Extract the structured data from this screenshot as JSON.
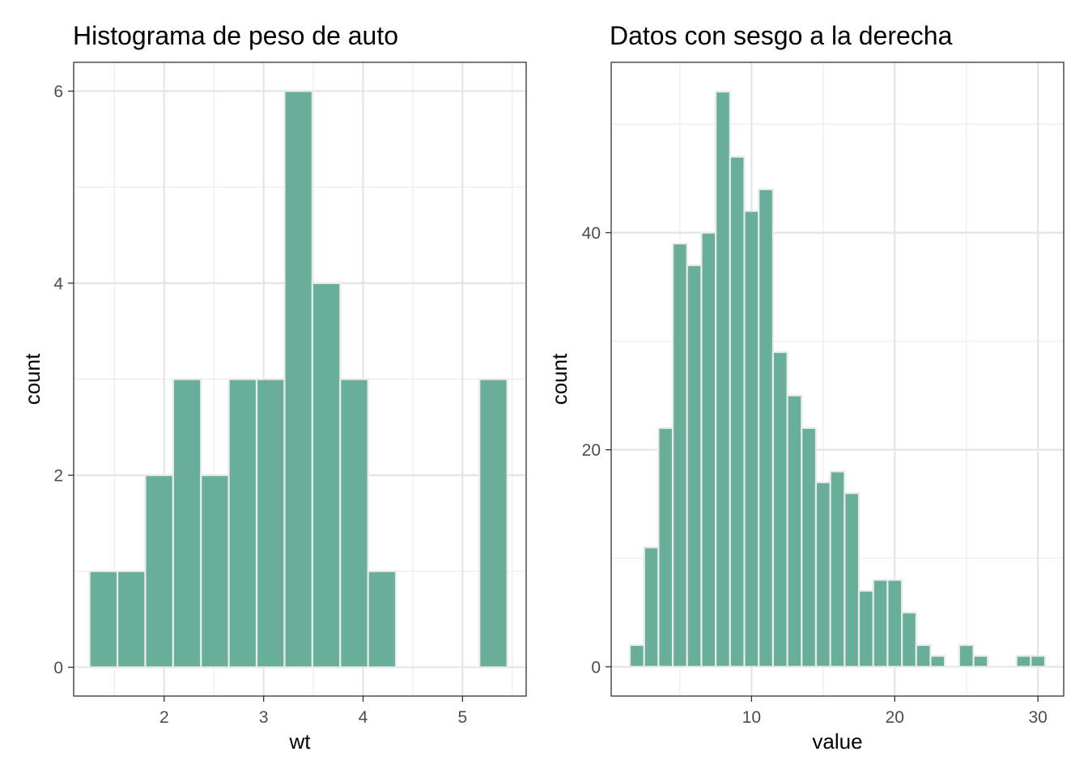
{
  "chart_data": [
    {
      "type": "bar",
      "title": "Histograma de peso de auto",
      "xlabel": "wt",
      "ylabel": "count",
      "xlim": [
        1.09,
        5.64
      ],
      "ylim": [
        -0.3,
        6.3
      ],
      "xticks": [
        2,
        3,
        4,
        5
      ],
      "yticks": [
        0,
        2,
        4,
        6
      ],
      "grid": true,
      "bar_color": "#69AE9A",
      "bar_edge_color": "#E8EAEC",
      "bins": [
        {
          "x0": 1.25,
          "x1": 1.53,
          "count": 1
        },
        {
          "x0": 1.53,
          "x1": 1.81,
          "count": 1
        },
        {
          "x0": 1.81,
          "x1": 2.09,
          "count": 2
        },
        {
          "x0": 2.09,
          "x1": 2.37,
          "count": 3
        },
        {
          "x0": 2.37,
          "x1": 2.65,
          "count": 2
        },
        {
          "x0": 2.65,
          "x1": 2.93,
          "count": 3
        },
        {
          "x0": 2.93,
          "x1": 3.21,
          "count": 3
        },
        {
          "x0": 3.21,
          "x1": 3.49,
          "count": 6
        },
        {
          "x0": 3.49,
          "x1": 3.77,
          "count": 4
        },
        {
          "x0": 3.77,
          "x1": 4.05,
          "count": 3
        },
        {
          "x0": 4.05,
          "x1": 4.33,
          "count": 1
        },
        {
          "x0": 4.33,
          "x1": 4.61,
          "count": 0
        },
        {
          "x0": 4.61,
          "x1": 4.89,
          "count": 0
        },
        {
          "x0": 4.89,
          "x1": 5.17,
          "count": 0
        },
        {
          "x0": 5.17,
          "x1": 5.45,
          "count": 3
        }
      ]
    },
    {
      "type": "bar",
      "title": "Datos con sesgo a la derecha",
      "xlabel": "value",
      "ylabel": "count",
      "xlim": [
        0.2,
        31.8
      ],
      "ylim": [
        -2.7,
        55.7
      ],
      "xticks": [
        10,
        20,
        30
      ],
      "yticks": [
        0,
        20,
        40
      ],
      "grid": true,
      "bar_color": "#69AE9A",
      "bar_edge_color": "#E8EAEC",
      "bins": [
        {
          "x0": 1.5,
          "x1": 2.5,
          "count": 2
        },
        {
          "x0": 2.5,
          "x1": 3.5,
          "count": 11
        },
        {
          "x0": 3.5,
          "x1": 4.5,
          "count": 22
        },
        {
          "x0": 4.5,
          "x1": 5.5,
          "count": 39
        },
        {
          "x0": 5.5,
          "x1": 6.5,
          "count": 37
        },
        {
          "x0": 6.5,
          "x1": 7.5,
          "count": 40
        },
        {
          "x0": 7.5,
          "x1": 8.5,
          "count": 53
        },
        {
          "x0": 8.5,
          "x1": 9.5,
          "count": 47
        },
        {
          "x0": 9.5,
          "x1": 10.5,
          "count": 42
        },
        {
          "x0": 10.5,
          "x1": 11.5,
          "count": 44
        },
        {
          "x0": 11.5,
          "x1": 12.5,
          "count": 29
        },
        {
          "x0": 12.5,
          "x1": 13.5,
          "count": 25
        },
        {
          "x0": 13.5,
          "x1": 14.5,
          "count": 22
        },
        {
          "x0": 14.5,
          "x1": 15.5,
          "count": 17
        },
        {
          "x0": 15.5,
          "x1": 16.5,
          "count": 18
        },
        {
          "x0": 16.5,
          "x1": 17.5,
          "count": 16
        },
        {
          "x0": 17.5,
          "x1": 18.5,
          "count": 7
        },
        {
          "x0": 18.5,
          "x1": 19.5,
          "count": 8
        },
        {
          "x0": 19.5,
          "x1": 20.5,
          "count": 8
        },
        {
          "x0": 20.5,
          "x1": 21.5,
          "count": 5
        },
        {
          "x0": 21.5,
          "x1": 22.5,
          "count": 2
        },
        {
          "x0": 22.5,
          "x1": 23.5,
          "count": 1
        },
        {
          "x0": 23.5,
          "x1": 24.5,
          "count": 0
        },
        {
          "x0": 24.5,
          "x1": 25.5,
          "count": 2
        },
        {
          "x0": 25.5,
          "x1": 26.5,
          "count": 1
        },
        {
          "x0": 26.5,
          "x1": 27.5,
          "count": 0
        },
        {
          "x0": 27.5,
          "x1": 28.5,
          "count": 0
        },
        {
          "x0": 28.5,
          "x1": 29.5,
          "count": 1
        },
        {
          "x0": 29.5,
          "x1": 30.5,
          "count": 1
        }
      ]
    }
  ]
}
